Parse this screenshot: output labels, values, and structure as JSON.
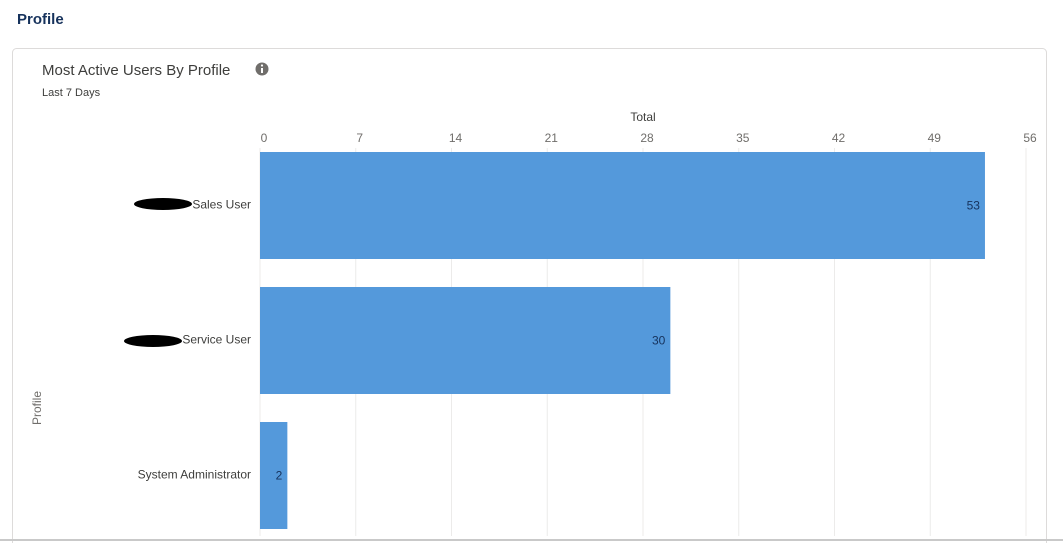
{
  "page_title": "Profile",
  "chart_data": {
    "type": "bar",
    "orientation": "horizontal",
    "title": "Most Active Users By Profile",
    "subtitle": "Last 7 Days",
    "x_label": "Total",
    "y_label": "Profile",
    "categories": [
      "Sales User",
      "Service User",
      "System Administrator"
    ],
    "values": [
      53,
      30,
      2
    ],
    "color": "#5499db",
    "xlim": [
      0,
      56
    ],
    "xticks": [
      0,
      7,
      14,
      21,
      28,
      35,
      42,
      49,
      56
    ],
    "grid": true
  }
}
